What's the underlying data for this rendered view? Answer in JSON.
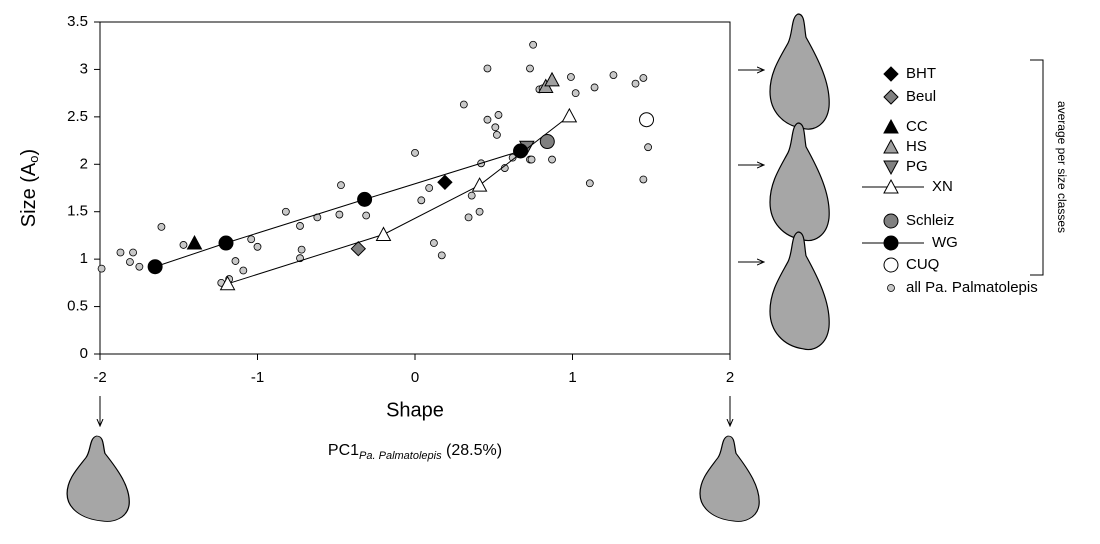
{
  "chart_data": {
    "type": "scatter",
    "x_label": "Shape",
    "y_label": "Size (A",
    "y_label_sub": "o",
    "y_label_end": ")",
    "annotation": "PC1",
    "annotation_sub": "Pa. Palmatolepis",
    "annotation_end": " (28.5%)",
    "legend_group_label": "average per size classes",
    "xlim": [
      -2,
      2
    ],
    "ylim": [
      0,
      3.5
    ],
    "xticks": [
      -2,
      -1,
      0,
      1,
      2
    ],
    "yticks": [
      0,
      0.5,
      1,
      1.5,
      2,
      2.5,
      3,
      3.5
    ],
    "series": [
      {
        "name": "BHT",
        "marker": "diamond",
        "color": "#000000",
        "x": [
          0.19
        ],
        "values": [
          1.81
        ]
      },
      {
        "name": "Beul",
        "marker": "diamond",
        "color": "#808080",
        "x": [
          -0.36
        ],
        "values": [
          1.11
        ]
      },
      {
        "name": "CC",
        "marker": "triangle",
        "color": "#000000",
        "x": [
          -1.4
        ],
        "values": [
          1.17
        ]
      },
      {
        "name": "HS",
        "marker": "triangle",
        "color": "#a0a0a0",
        "x": [
          0.83,
          0.87
        ],
        "values": [
          2.82,
          2.89
        ]
      },
      {
        "name": "PG",
        "marker": "triangle-down",
        "color": "#808080",
        "x": [
          0.71
        ],
        "values": [
          2.18
        ]
      },
      {
        "name": "XN",
        "marker": "triangle",
        "color": "#ffffff",
        "line": true,
        "x": [
          -1.19,
          -0.2,
          0.41,
          0.98
        ],
        "values": [
          0.74,
          1.26,
          1.78,
          2.51
        ]
      },
      {
        "name": "Schleiz",
        "marker": "circle",
        "color": "#808080",
        "x": [
          0.84
        ],
        "values": [
          2.24
        ]
      },
      {
        "name": "WG",
        "marker": "circle",
        "color": "#000000",
        "line": true,
        "x": [
          -1.65,
          -1.2,
          -0.32,
          0.67
        ],
        "values": [
          0.92,
          1.17,
          1.63,
          2.14
        ]
      },
      {
        "name": "CUQ",
        "marker": "circle",
        "color": "#ffffff",
        "x": [
          1.47
        ],
        "values": [
          2.47
        ]
      },
      {
        "name": "all Pa. Palmatolepis",
        "marker": "small-circle",
        "color": "#c8c8c8",
        "x": [
          -1.99,
          -1.87,
          -1.81,
          -1.79,
          -1.75,
          -1.61,
          -1.47,
          -1.23,
          -1.18,
          -1.14,
          -1.09,
          -1.04,
          -1.0,
          -0.82,
          -0.73,
          -0.72,
          -0.73,
          -0.62,
          -0.48,
          -0.47,
          -0.31,
          0.0,
          0.04,
          0.09,
          0.12,
          0.17,
          0.31,
          0.34,
          0.36,
          0.41,
          0.42,
          0.46,
          0.46,
          0.51,
          0.52,
          0.53,
          0.57,
          0.62,
          0.73,
          0.75,
          0.73,
          0.79,
          0.81,
          0.74,
          0.87,
          0.99,
          1.02,
          1.11,
          1.14,
          1.26,
          1.4,
          1.45,
          1.45,
          1.48
        ],
        "values": [
          0.9,
          1.07,
          0.97,
          1.07,
          0.92,
          1.34,
          1.15,
          0.75,
          0.79,
          0.98,
          0.88,
          1.21,
          1.13,
          1.5,
          1.01,
          1.1,
          1.35,
          1.44,
          1.47,
          1.78,
          1.46,
          2.12,
          1.62,
          1.75,
          1.17,
          1.04,
          2.63,
          1.44,
          1.67,
          1.5,
          2.01,
          3.01,
          2.47,
          2.39,
          2.31,
          2.52,
          1.96,
          2.07,
          2.05,
          3.26,
          3.01,
          2.79,
          2.8,
          2.05,
          2.05,
          2.92,
          2.75,
          1.8,
          2.81,
          2.94,
          2.85,
          2.91,
          1.84,
          2.18
        ]
      }
    ]
  }
}
